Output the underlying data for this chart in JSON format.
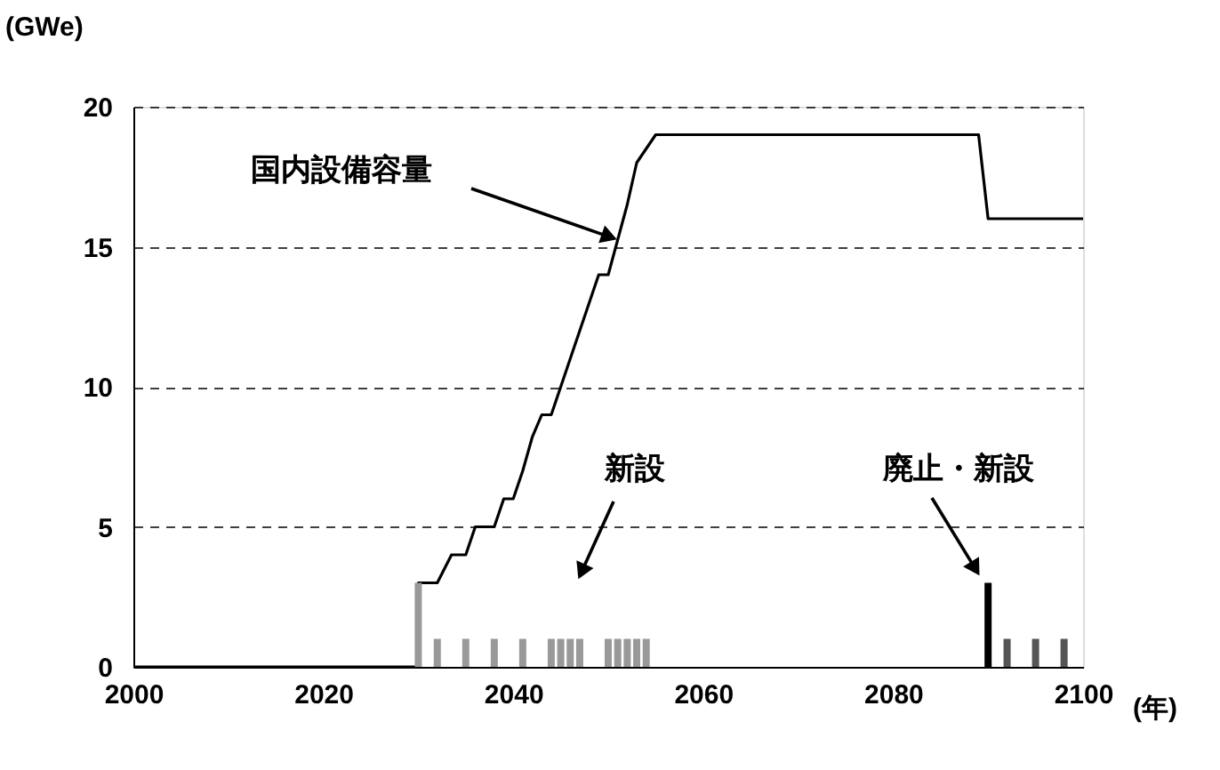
{
  "chart_data": {
    "type": "line",
    "ylabel": "(GWe)",
    "xlabel": "(年)",
    "xlim": [
      2000,
      2100
    ],
    "xticks": [
      2000,
      2020,
      2040,
      2060,
      2080,
      2100
    ],
    "ylim": [
      0,
      20
    ],
    "yticks": [
      0,
      5,
      10,
      15,
      20
    ],
    "grid": "y",
    "line_style": "solid",
    "marker": "none",
    "series": [
      {
        "color": "#000000",
        "x": [
          2000,
          2030,
          2030,
          2032,
          2033.5,
          2035,
          2036,
          2038,
          2039,
          2040,
          2041,
          2042,
          2043,
          2044,
          2046,
          2047,
          2048,
          2049,
          2050,
          2052,
          2053,
          2055,
          2089,
          2090,
          2100
        ],
        "values": [
          0,
          0,
          3,
          3,
          4,
          4,
          5,
          5,
          6,
          6,
          7,
          8.2,
          9,
          9,
          11,
          12,
          13,
          14,
          14,
          16.5,
          18,
          19,
          19,
          16,
          16
        ]
      },
      {
        "type": "bar",
        "x": [
          2030,
          2032,
          2035,
          2038,
          2041,
          2044,
          2045,
          2046,
          2047,
          2050,
          2051,
          2052,
          2053,
          2054,
          2090,
          2092,
          2095,
          2098
        ],
        "values": [
          3,
          1,
          1,
          1,
          1,
          1,
          1,
          1,
          1,
          1,
          1,
          1,
          1,
          1,
          3,
          1,
          1,
          1
        ],
        "colors": [
          "#999999",
          "#999999",
          "#999999",
          "#999999",
          "#999999",
          "#999999",
          "#999999",
          "#999999",
          "#999999",
          "#999999",
          "#999999",
          "#999999",
          "#999999",
          "#999999",
          "#000000",
          "#555555",
          "#555555",
          "#555555"
        ]
      }
    ],
    "annotations": [
      {
        "text": "国内設備容量",
        "x": 2051,
        "y": 15.25
      },
      "新設",
      "廃止・新設"
    ]
  }
}
